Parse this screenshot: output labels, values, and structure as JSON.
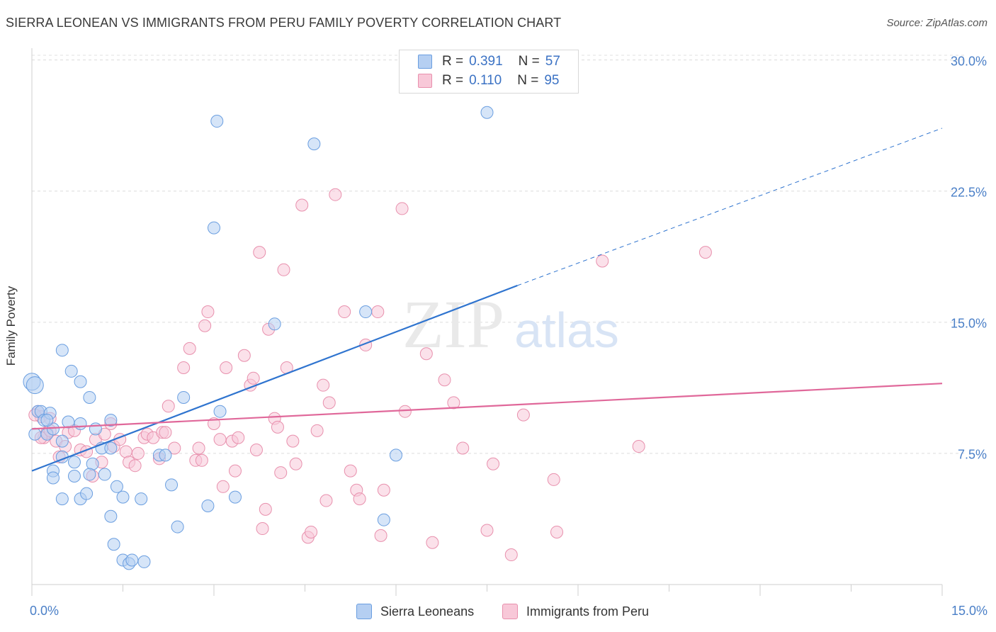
{
  "title": "SIERRA LEONEAN VS IMMIGRANTS FROM PERU FAMILY POVERTY CORRELATION CHART",
  "source": "Source: ZipAtlas.com",
  "watermark": {
    "zip": "ZIP",
    "atlas": "atlas"
  },
  "legend": {
    "series1": {
      "r_label": "R =",
      "r_value": "0.391",
      "n_label": "N =",
      "n_value": "57"
    },
    "series2": {
      "r_label": "R =",
      "r_value": "0.110",
      "n_label": "N =",
      "n_value": "95"
    }
  },
  "chart_data": {
    "type": "scatter",
    "title": "SIERRA LEONEAN VS IMMIGRANTS FROM PERU FAMILY POVERTY CORRELATION CHART",
    "xlabel": "",
    "ylabel": "Family Poverty",
    "xlim": [
      0,
      15
    ],
    "ylim": [
      0,
      31
    ],
    "x_tick_labels": [
      "0.0%",
      "15.0%"
    ],
    "y_ticks": [
      7.5,
      15.0,
      22.5,
      30.0
    ],
    "y_tick_labels": [
      "7.5%",
      "15.0%",
      "22.5%",
      "30.0%"
    ],
    "grid": true,
    "legend_position": "bottom-center",
    "colors": {
      "series1": "#6a9ee0",
      "series1_fill": "#b5cff2",
      "series1_line": "#2f74cf",
      "series2": "#e890ad",
      "series2_fill": "#f8c8d8",
      "series2_line": "#e0689a"
    },
    "series": [
      {
        "name": "Sierra Leoneans",
        "trend": {
          "x": [
            0.0,
            8.0
          ],
          "y": [
            6.5,
            17.1
          ],
          "dashed_to": [
            15.0,
            26.1
          ]
        },
        "points": [
          [
            0.0,
            11.6
          ],
          [
            0.05,
            11.4
          ],
          [
            0.1,
            9.9
          ],
          [
            0.15,
            9.9
          ],
          [
            0.2,
            9.4
          ],
          [
            0.25,
            8.6
          ],
          [
            0.05,
            8.6
          ],
          [
            0.3,
            9.8
          ],
          [
            0.35,
            8.9
          ],
          [
            0.5,
            8.2
          ],
          [
            0.6,
            9.3
          ],
          [
            0.5,
            7.3
          ],
          [
            0.7,
            7.0
          ],
          [
            0.8,
            9.2
          ],
          [
            0.5,
            13.4
          ],
          [
            0.65,
            12.2
          ],
          [
            0.8,
            11.6
          ],
          [
            0.95,
            10.7
          ],
          [
            1.05,
            8.9
          ],
          [
            1.15,
            7.8
          ],
          [
            1.3,
            7.8
          ],
          [
            1.3,
            9.4
          ],
          [
            1.0,
            6.9
          ],
          [
            1.2,
            6.3
          ],
          [
            0.95,
            6.3
          ],
          [
            0.35,
            6.5
          ],
          [
            0.35,
            6.1
          ],
          [
            0.7,
            6.2
          ],
          [
            0.5,
            4.9
          ],
          [
            0.8,
            4.9
          ],
          [
            0.9,
            5.2
          ],
          [
            1.4,
            5.6
          ],
          [
            1.5,
            5.0
          ],
          [
            1.8,
            4.9
          ],
          [
            1.3,
            3.9
          ],
          [
            1.35,
            2.3
          ],
          [
            1.5,
            1.4
          ],
          [
            1.6,
            1.2
          ],
          [
            1.65,
            1.4
          ],
          [
            1.85,
            1.3
          ],
          [
            2.1,
            7.4
          ],
          [
            2.2,
            7.4
          ],
          [
            2.3,
            5.7
          ],
          [
            2.4,
            3.3
          ],
          [
            2.5,
            10.7
          ],
          [
            2.9,
            4.5
          ],
          [
            3.0,
            20.4
          ],
          [
            3.05,
            26.5
          ],
          [
            3.1,
            9.9
          ],
          [
            3.35,
            5.0
          ],
          [
            4.0,
            14.9
          ],
          [
            4.65,
            25.2
          ],
          [
            5.5,
            15.6
          ],
          [
            5.8,
            3.7
          ],
          [
            6.0,
            7.4
          ],
          [
            7.5,
            27.0
          ],
          [
            0.25,
            9.4
          ]
        ]
      },
      {
        "name": "Immigrants from Peru",
        "trend": {
          "x": [
            0.0,
            15.0
          ],
          "y": [
            8.9,
            11.5
          ]
        },
        "points": [
          [
            0.1,
            9.9
          ],
          [
            0.15,
            9.6
          ],
          [
            0.2,
            8.4
          ],
          [
            0.25,
            8.7
          ],
          [
            0.3,
            9.5
          ],
          [
            0.4,
            8.2
          ],
          [
            0.45,
            7.3
          ],
          [
            0.55,
            7.9
          ],
          [
            0.6,
            8.7
          ],
          [
            0.7,
            8.8
          ],
          [
            0.8,
            7.7
          ],
          [
            0.9,
            7.6
          ],
          [
            1.0,
            6.2
          ],
          [
            1.05,
            8.3
          ],
          [
            1.15,
            7.0
          ],
          [
            1.2,
            8.6
          ],
          [
            1.3,
            9.2
          ],
          [
            1.35,
            7.9
          ],
          [
            1.45,
            8.3
          ],
          [
            1.55,
            7.6
          ],
          [
            1.6,
            7.0
          ],
          [
            1.7,
            6.8
          ],
          [
            1.75,
            7.5
          ],
          [
            1.85,
            8.4
          ],
          [
            1.9,
            8.6
          ],
          [
            2.0,
            8.4
          ],
          [
            2.1,
            7.2
          ],
          [
            2.15,
            8.7
          ],
          [
            2.2,
            8.7
          ],
          [
            2.25,
            10.2
          ],
          [
            2.35,
            7.8
          ],
          [
            2.5,
            12.4
          ],
          [
            2.6,
            13.5
          ],
          [
            2.7,
            7.1
          ],
          [
            2.8,
            7.1
          ],
          [
            2.75,
            7.8
          ],
          [
            2.85,
            14.8
          ],
          [
            2.9,
            15.6
          ],
          [
            3.0,
            9.2
          ],
          [
            3.1,
            8.3
          ],
          [
            3.15,
            5.6
          ],
          [
            3.2,
            12.4
          ],
          [
            3.3,
            8.2
          ],
          [
            3.35,
            6.5
          ],
          [
            3.4,
            8.4
          ],
          [
            3.5,
            13.1
          ],
          [
            3.6,
            11.4
          ],
          [
            3.65,
            11.8
          ],
          [
            3.7,
            7.7
          ],
          [
            3.75,
            19.0
          ],
          [
            3.8,
            3.2
          ],
          [
            3.85,
            4.3
          ],
          [
            3.9,
            14.6
          ],
          [
            4.0,
            9.5
          ],
          [
            4.05,
            9.0
          ],
          [
            4.1,
            6.4
          ],
          [
            4.15,
            18.0
          ],
          [
            4.2,
            12.4
          ],
          [
            4.3,
            8.2
          ],
          [
            4.35,
            6.9
          ],
          [
            4.45,
            21.7
          ],
          [
            4.55,
            2.7
          ],
          [
            4.6,
            3.0
          ],
          [
            4.7,
            8.8
          ],
          [
            4.8,
            11.4
          ],
          [
            4.85,
            4.8
          ],
          [
            4.9,
            10.4
          ],
          [
            5.0,
            22.3
          ],
          [
            5.15,
            15.6
          ],
          [
            5.25,
            6.5
          ],
          [
            5.35,
            5.4
          ],
          [
            5.4,
            4.9
          ],
          [
            5.5,
            13.7
          ],
          [
            5.7,
            15.6
          ],
          [
            5.75,
            2.8
          ],
          [
            5.8,
            5.4
          ],
          [
            6.1,
            21.5
          ],
          [
            6.15,
            9.9
          ],
          [
            6.5,
            13.2
          ],
          [
            6.6,
            2.4
          ],
          [
            6.8,
            11.7
          ],
          [
            6.95,
            10.4
          ],
          [
            7.1,
            7.8
          ],
          [
            7.5,
            3.1
          ],
          [
            7.6,
            6.9
          ],
          [
            7.9,
            1.7
          ],
          [
            8.1,
            9.7
          ],
          [
            8.6,
            6.0
          ],
          [
            8.65,
            3.0
          ],
          [
            9.4,
            18.5
          ],
          [
            10.0,
            7.9
          ],
          [
            11.1,
            19.0
          ],
          [
            0.05,
            9.7
          ],
          [
            0.15,
            8.4
          ],
          [
            0.3,
            8.8
          ]
        ]
      }
    ]
  },
  "bottom_legend": {
    "series1": "Sierra Leoneans",
    "series2": "Immigrants from Peru"
  }
}
